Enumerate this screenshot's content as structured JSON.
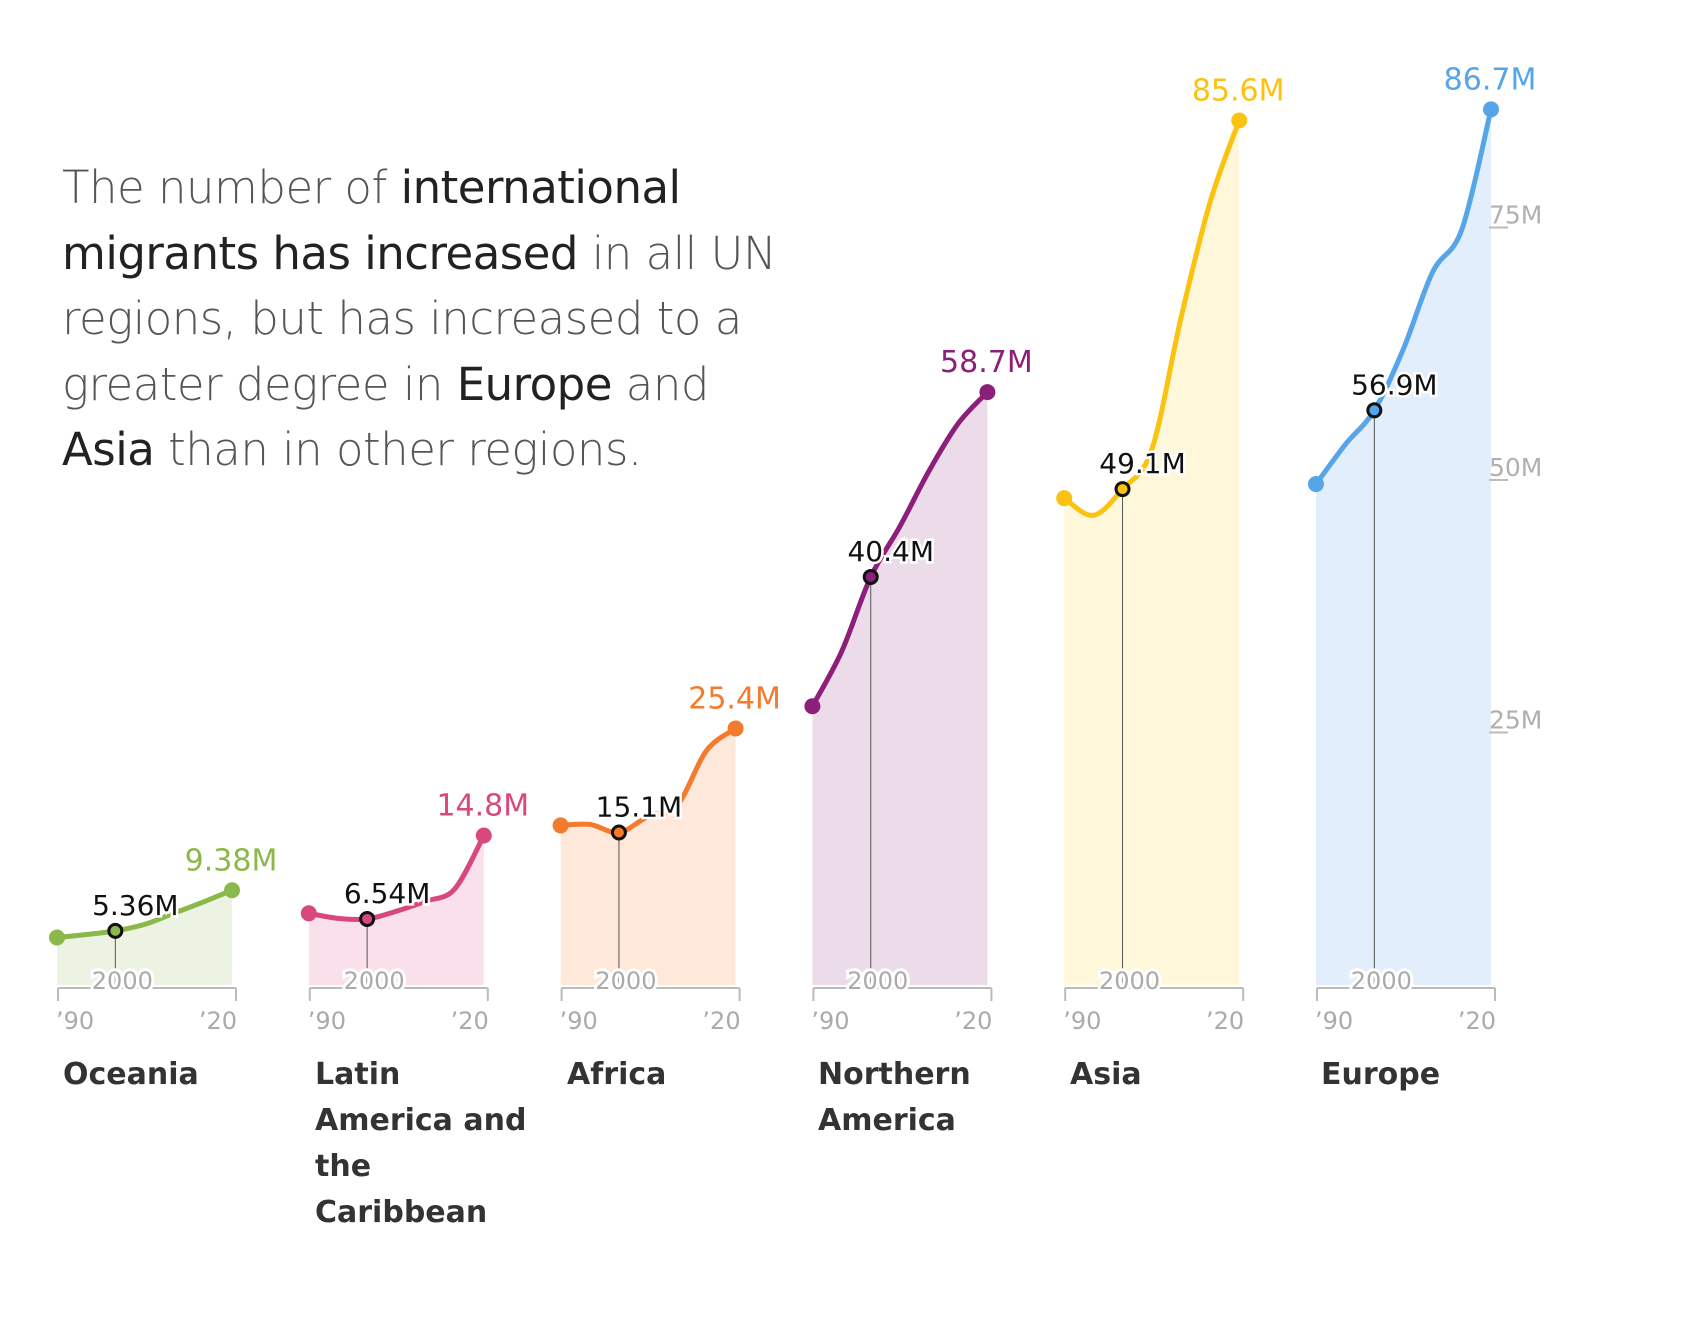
{
  "headline": {
    "p1": "The number of ",
    "b1": "international migrants has increased",
    "p2": " in all UN regions, but has increased to a greater degree in ",
    "b2": "Europe",
    "p3": " and ",
    "b3": "Asia",
    "p4": " than in other regions."
  },
  "chart_data": {
    "type": "area",
    "unit": "M",
    "x_tick_labels": [
      "’90",
      "2000",
      "’20"
    ],
    "y_ticks": [
      25,
      50,
      75
    ],
    "y_tick_labels": [
      "25M",
      "50M",
      "75M"
    ],
    "ylim": [
      0,
      90
    ],
    "x_years": [
      1990,
      1995,
      2000,
      2005,
      2010,
      2015,
      2020
    ],
    "panels": [
      {
        "region": "Oceania",
        "color": "#8bb84a",
        "fill": "#edf3e3",
        "values": [
          4.7,
          5.0,
          5.36,
          6.0,
          7.1,
          8.2,
          9.38
        ],
        "label_2000": "5.36M",
        "label_2020": "9.38M"
      },
      {
        "region": "Latin America and the Caribbean",
        "color": "#d9487d",
        "fill": "#f9e0eb",
        "values": [
          7.1,
          6.6,
          6.54,
          7.3,
          8.3,
          9.5,
          14.8
        ],
        "label_2000": "6.54M",
        "label_2020": "14.8M"
      },
      {
        "region": "Africa",
        "color": "#f47b2c",
        "fill": "#fde8da",
        "values": [
          15.8,
          15.9,
          15.1,
          16.7,
          17.8,
          23.2,
          25.4
        ],
        "label_2000": "15.1M",
        "label_2020": "25.4M"
      },
      {
        "region": "Northern America",
        "color": "#8b1f7a",
        "fill": "#ecdcea",
        "values": [
          27.6,
          33.0,
          40.4,
          45.4,
          50.9,
          55.6,
          58.7
        ],
        "label_2000": "40.4M",
        "label_2020": "58.7M"
      },
      {
        "region": "Asia",
        "color": "#fbc30f",
        "fill": "#fef7d9",
        "values": [
          48.2,
          46.5,
          49.1,
          53.0,
          66.0,
          77.5,
          85.6
        ],
        "label_2000": "49.1M",
        "label_2020": "85.6M"
      },
      {
        "region": "Europe",
        "color": "#55a5e8",
        "fill": "#e2eefb",
        "values": [
          49.6,
          53.5,
          56.9,
          63.0,
          70.6,
          74.8,
          86.7
        ],
        "label_2000": "56.9M",
        "label_2020": "86.7M"
      }
    ]
  }
}
